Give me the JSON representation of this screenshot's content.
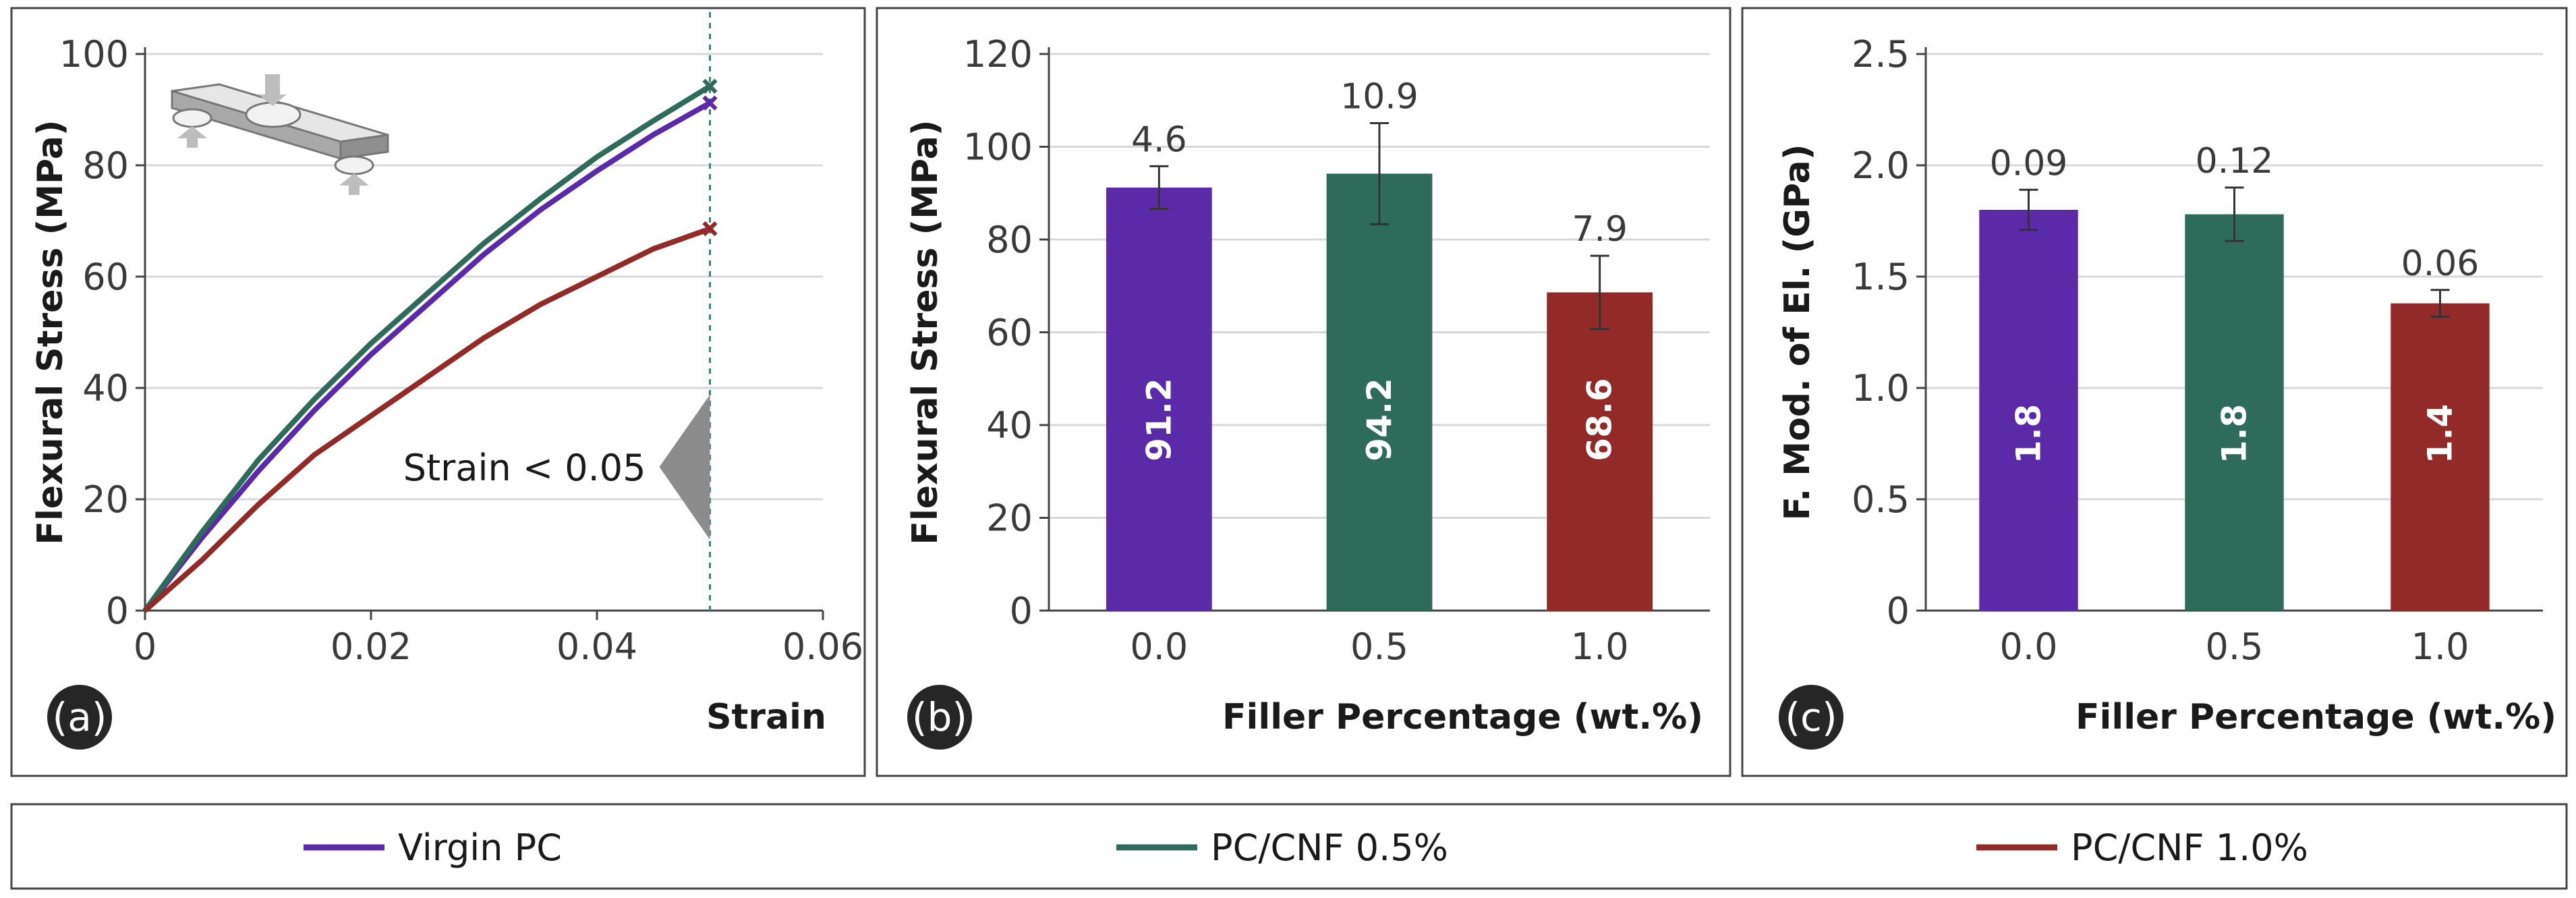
{
  "colors": {
    "series_0": "#5b2aa8",
    "series_1": "#2f6b5b",
    "series_2": "#922a27",
    "grid": "#d8d8d8",
    "annotation": "#8c8c8c",
    "dashed": "#2f8a82"
  },
  "legend": {
    "items": [
      "Virgin PC",
      "PC/CNF 0.5%",
      "PC/CNF 1.0%"
    ]
  },
  "icons": {
    "beam": "three-point-bending-beam-icon"
  },
  "chart_data": [
    {
      "panel": "(a)",
      "type": "line",
      "title": "",
      "xlabel": "Strain",
      "ylabel": "Flexural Stress (MPa)",
      "xlim": [
        0,
        0.06
      ],
      "ylim": [
        0,
        100
      ],
      "xticks": [
        0,
        0.02,
        0.04,
        0.06
      ],
      "xtick_labels": [
        "0",
        "0.02",
        "0.04",
        "0.06"
      ],
      "yticks": [
        0,
        20,
        40,
        60,
        80,
        100
      ],
      "ytick_labels": [
        "0",
        "20",
        "40",
        "60",
        "80",
        "100"
      ],
      "grid": true,
      "annotation": "Strain < 0.05",
      "vline_x": 0.05,
      "series": [
        {
          "name": "Virgin PC",
          "x": [
            0,
            0.005,
            0.01,
            0.015,
            0.02,
            0.025,
            0.03,
            0.035,
            0.04,
            0.045,
            0.05
          ],
          "y": [
            0,
            13,
            25,
            36,
            46,
            55,
            64,
            72,
            79,
            85.5,
            91.2
          ]
        },
        {
          "name": "PC/CNF 0.5%",
          "x": [
            0,
            0.005,
            0.01,
            0.015,
            0.02,
            0.025,
            0.03,
            0.035,
            0.04,
            0.045,
            0.05
          ],
          "y": [
            0,
            14,
            27,
            38,
            48,
            57,
            66,
            74,
            81.5,
            88,
            94.2
          ]
        },
        {
          "name": "PC/CNF 1.0%",
          "x": [
            0,
            0.005,
            0.01,
            0.015,
            0.02,
            0.025,
            0.03,
            0.035,
            0.04,
            0.045,
            0.05
          ],
          "y": [
            0,
            9,
            19,
            28,
            35,
            42,
            49,
            55,
            60,
            65,
            68.6
          ]
        }
      ]
    },
    {
      "panel": "(b)",
      "type": "bar",
      "title": "",
      "xlabel": "Filler Percentage (wt.%)",
      "ylabel": "Flexural Stress (MPa)",
      "categories": [
        "0.0",
        "0.5",
        "1.0"
      ],
      "values": [
        91.2,
        94.2,
        68.6
      ],
      "value_labels": [
        "91.2",
        "94.2",
        "68.6"
      ],
      "errors": [
        4.6,
        10.9,
        7.9
      ],
      "error_labels": [
        "4.6",
        "10.9",
        "7.9"
      ],
      "ylim": [
        0,
        120
      ],
      "yticks": [
        0,
        20,
        40,
        60,
        80,
        100,
        120
      ],
      "ytick_labels": [
        "0",
        "20",
        "40",
        "60",
        "80",
        "100",
        "120"
      ],
      "grid": true
    },
    {
      "panel": "(c)",
      "type": "bar",
      "title": "",
      "xlabel": "Filler Percentage (wt.%)",
      "ylabel": "F. Mod. of El. (GPa)",
      "categories": [
        "0.0",
        "0.5",
        "1.0"
      ],
      "values": [
        1.8,
        1.78,
        1.38
      ],
      "value_labels": [
        "1.8",
        "1.8",
        "1.4"
      ],
      "errors": [
        0.09,
        0.12,
        0.06
      ],
      "error_labels": [
        "0.09",
        "0.12",
        "0.06"
      ],
      "ylim": [
        0,
        2.5
      ],
      "yticks": [
        0,
        0.5,
        1.0,
        1.5,
        2.0,
        2.5
      ],
      "ytick_labels": [
        "0",
        "0.5",
        "1.0",
        "1.5",
        "2.0",
        "2.5"
      ],
      "grid": true
    }
  ]
}
